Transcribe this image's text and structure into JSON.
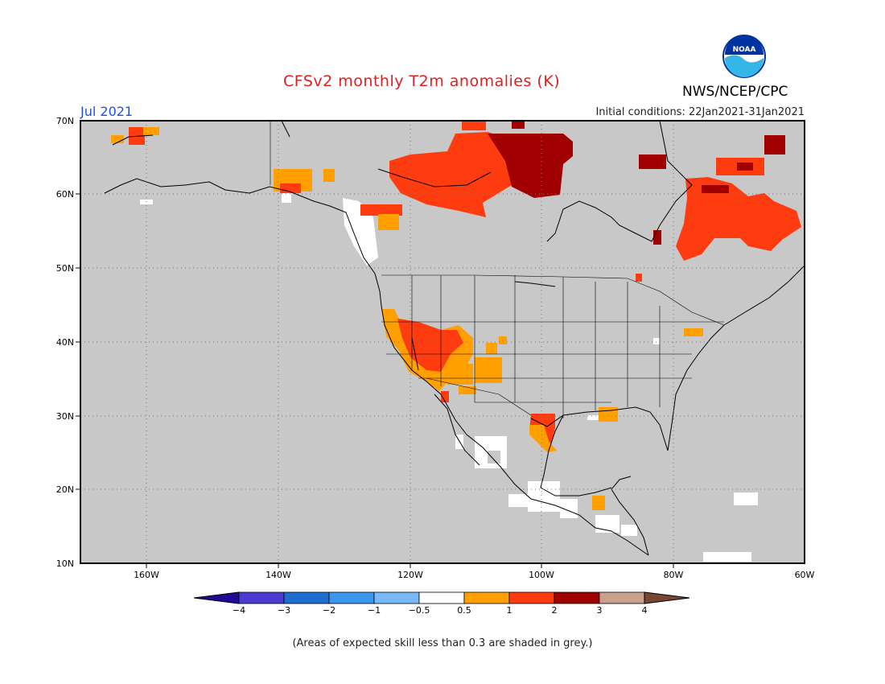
{
  "header": {
    "title": "CFSv2 monthly T2m anomalies (K)",
    "org": "NWS/NCEP/CPC",
    "month": "Jul 2021",
    "initial_conditions": "Initial conditions: 22Jan2021-31Jan2021",
    "logo_text": "NOAA"
  },
  "map": {
    "background_color": "#c8c8c8",
    "lat_labels": [
      "70N",
      "60N",
      "50N",
      "40N",
      "30N",
      "20N",
      "10N"
    ],
    "lon_labels": [
      "160W",
      "140W",
      "120W",
      "100W",
      "80W",
      "60W"
    ],
    "icons": [
      "noaa-logo-icon",
      "coastline-icon",
      "state-border-icon"
    ]
  },
  "legend": {
    "bins": [
      {
        "color": "#1e0a96"
      },
      {
        "color": "#4a3cd2"
      },
      {
        "color": "#1e6ed2"
      },
      {
        "color": "#3c96f0"
      },
      {
        "color": "#78b9fa"
      },
      {
        "color": "#ffffff"
      },
      {
        "color": "#ffa000"
      },
      {
        "color": "#ff3c10"
      },
      {
        "color": "#a00000"
      },
      {
        "color": "#c8a08c"
      },
      {
        "color": "#784632"
      }
    ],
    "tick_labels": [
      "−4",
      "−3",
      "−2",
      "−1",
      "−0.5",
      "0.5",
      "1",
      "2",
      "3",
      "4"
    ]
  },
  "footnote": "(Areas of expected skill less than 0.3 are shaded in grey.)"
}
